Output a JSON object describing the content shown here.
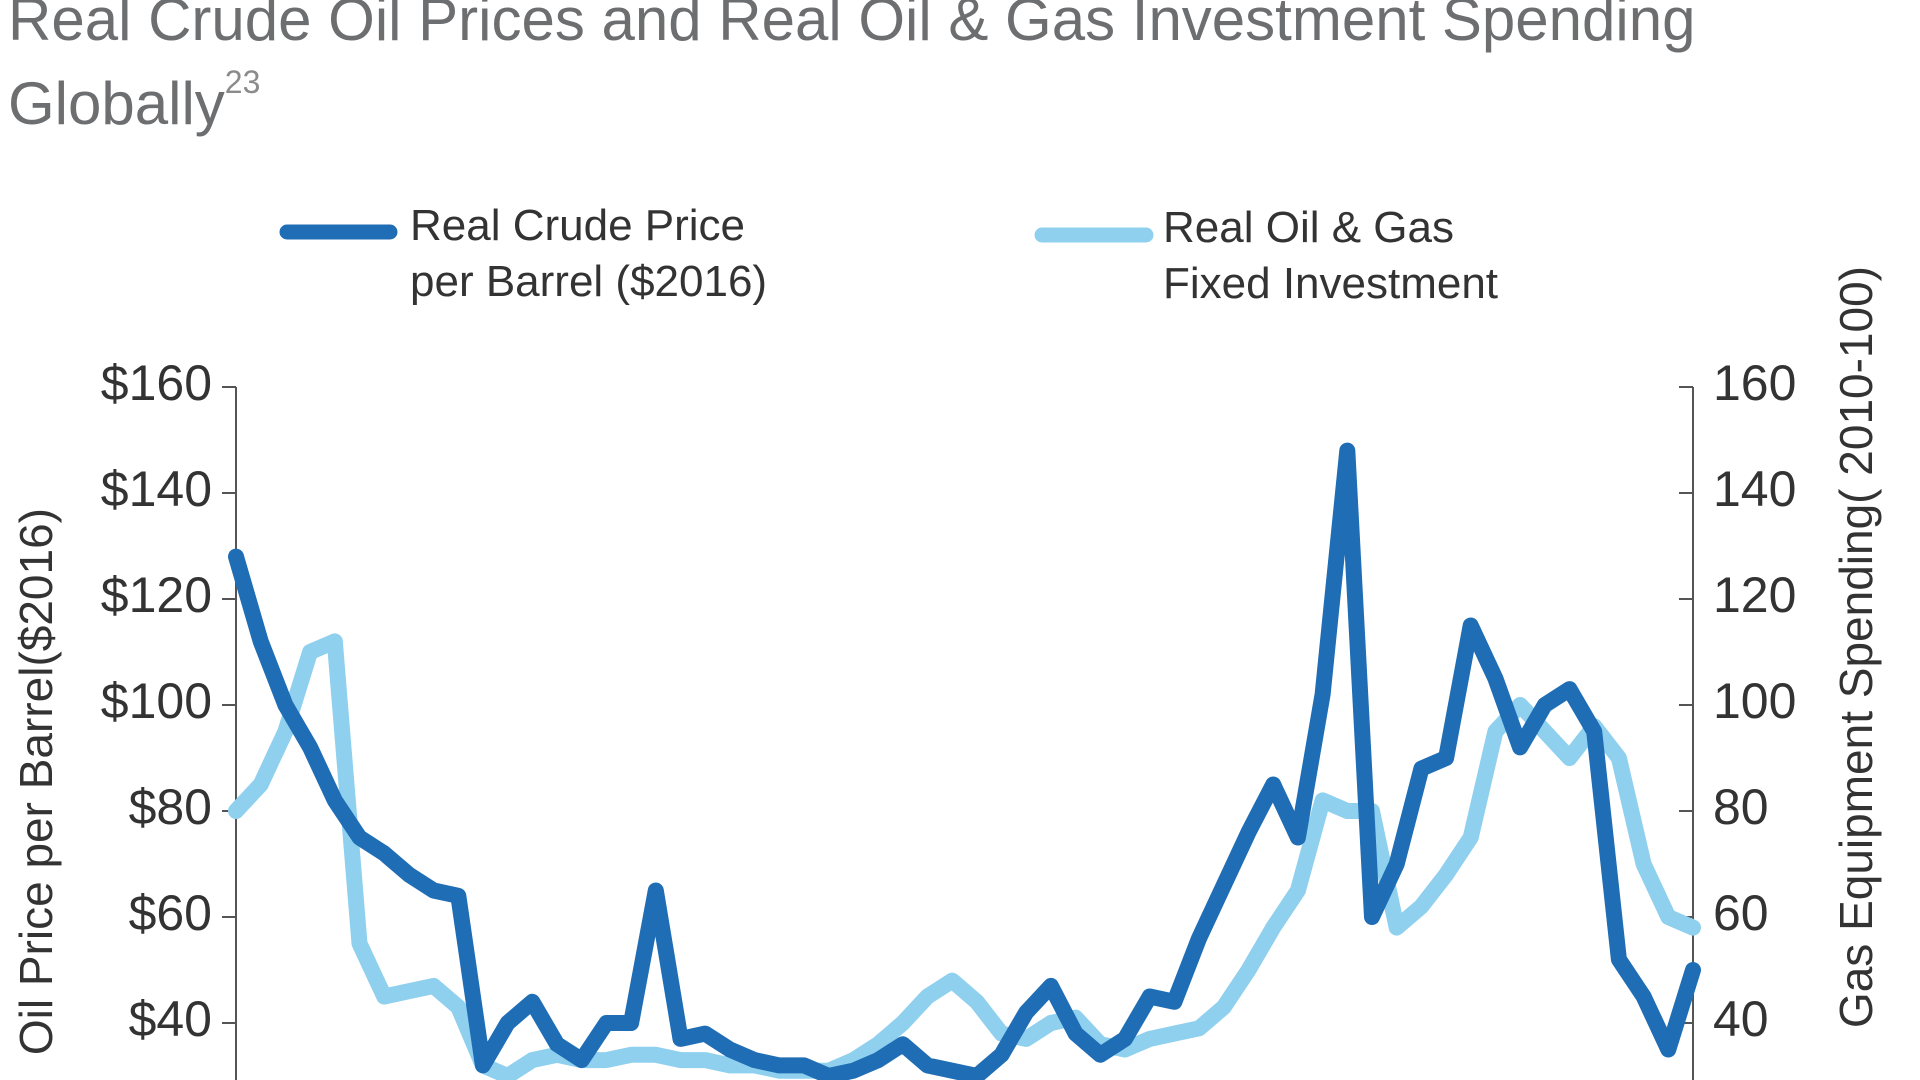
{
  "chart_data": {
    "type": "line",
    "title": "Real Crude Oil Prices and Real Oil & Gas Investment Spending Globally",
    "title_footnote": "23",
    "y_label": "Oil Price per Barrel($2016)",
    "y2_label": "Gas Equipment Spending( 2010-100)",
    "categories": [
      null,
      null,
      null,
      null,
      null,
      null,
      null,
      null,
      null,
      null,
      null,
      null,
      null,
      null,
      null,
      null,
      null,
      null,
      null,
      null,
      null,
      null,
      null,
      null,
      null,
      null,
      null,
      null,
      null,
      null,
      null,
      null,
      null,
      null,
      null,
      null,
      null,
      null,
      null,
      null,
      null,
      null,
      null,
      null,
      null,
      null,
      null,
      null,
      null,
      null,
      null,
      null,
      null,
      null,
      null,
      null,
      null,
      null,
      null,
      null
    ],
    "ylim": [
      30,
      160
    ],
    "yticks": [
      {
        "value": 40,
        "label": "$40"
      },
      {
        "value": 60,
        "label": "$60"
      },
      {
        "value": 80,
        "label": "$80"
      },
      {
        "value": 100,
        "label": "$100"
      },
      {
        "value": 120,
        "label": "$120"
      },
      {
        "value": 140,
        "label": "$140"
      },
      {
        "value": 160,
        "label": "$160"
      }
    ],
    "y2lim": [
      30,
      160
    ],
    "y2ticks": [
      40,
      60,
      80,
      100,
      120,
      140,
      160
    ],
    "series": [
      {
        "name": "Real Crude Price per Barrel ($2016)",
        "color": "#1f6db5",
        "values": [
          128,
          112,
          100,
          92,
          82,
          75,
          72,
          68,
          65,
          64,
          32,
          40,
          44,
          36,
          33,
          40,
          40,
          65,
          37,
          38,
          35,
          33,
          32,
          32,
          30,
          31,
          33,
          36,
          32,
          31,
          30,
          34,
          42,
          47,
          38,
          34,
          37,
          45,
          44,
          56,
          66,
          76,
          85,
          75,
          102,
          148,
          60,
          70,
          88,
          90,
          115,
          105,
          92,
          100,
          103,
          95,
          52,
          45,
          35,
          50
        ]
      },
      {
        "name": "Real Oil & Gas Fixed Investment",
        "color": "#8fd0ef",
        "axis": "y2",
        "values": [
          80,
          85,
          95,
          110,
          112,
          55,
          45,
          46,
          47,
          43,
          32,
          30,
          33,
          34,
          33,
          33,
          34,
          34,
          33,
          33,
          32,
          32,
          31,
          31,
          31,
          33,
          36,
          40,
          45,
          48,
          44,
          38,
          37,
          40,
          41,
          36,
          35,
          37,
          38,
          39,
          43,
          50,
          58,
          65,
          82,
          80,
          80,
          58,
          62,
          68,
          75,
          95,
          100,
          95,
          90,
          96,
          90,
          70,
          60,
          58
        ]
      }
    ]
  }
}
